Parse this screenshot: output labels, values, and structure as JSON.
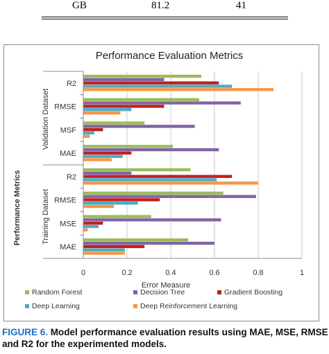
{
  "top_table": {
    "row": [
      "GB",
      "81.2",
      "41"
    ]
  },
  "caption": {
    "label": "FIGURE 6.",
    "text": "Model performance evaluation results using MAE, MSE, RMSE and R2 for the experimented models."
  },
  "chart_data": {
    "type": "bar",
    "orientation": "horizontal",
    "title": "Performance Evaluation Metrics",
    "xlabel": "Error Measure",
    "ylabel": "Performance Metrics",
    "xlim": [
      0,
      1
    ],
    "xticks": [
      "0",
      "0.2",
      "0.4",
      "0.6",
      "0.8",
      "1"
    ],
    "grid": true,
    "legend_position": "bottom",
    "groups": [
      {
        "label": "Validation Dataset",
        "categories": [
          "R2",
          "RMSE",
          "MSF",
          "MAE"
        ]
      },
      {
        "label": "Training Dataset",
        "categories": [
          "R2",
          "RMSE",
          "MSE",
          "MAE"
        ]
      }
    ],
    "series": [
      {
        "name": "Random Forest",
        "color": "#9bbb59",
        "values": [
          0.54,
          0.53,
          0.28,
          0.41,
          0.49,
          0.64,
          0.31,
          0.48
        ]
      },
      {
        "name": "Decision Tree",
        "color": "#8064a2",
        "values": [
          0.37,
          0.72,
          0.51,
          0.62,
          0.22,
          0.79,
          0.63,
          0.6
        ]
      },
      {
        "name": "Gradient Boosting",
        "color": "#c0201f",
        "values": [
          0.62,
          0.37,
          0.09,
          0.22,
          0.68,
          0.35,
          0.09,
          0.28
        ]
      },
      {
        "name": "Deep Learning",
        "color": "#4bacc6",
        "values": [
          0.68,
          0.22,
          0.05,
          0.18,
          0.61,
          0.25,
          0.07,
          0.19
        ]
      },
      {
        "name": "Deep Reinforcement Learning",
        "color": "#f79646",
        "values": [
          0.87,
          0.17,
          0.03,
          0.13,
          0.8,
          0.14,
          0.02,
          0.19
        ]
      }
    ]
  }
}
